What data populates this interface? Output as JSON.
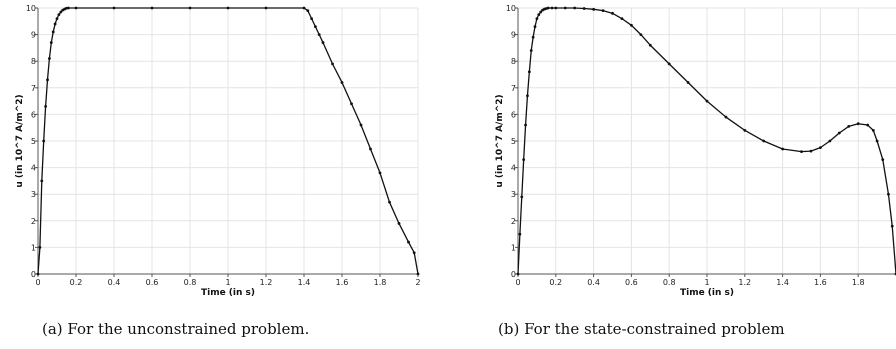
{
  "captions": {
    "a": "(a) For the unconstrained problem.",
    "b": "(b) For the state-constrained problem"
  },
  "colors": {
    "line": "#111111",
    "grid": "#e4e4e4",
    "axis": "#555555"
  },
  "chart_data": [
    {
      "type": "line",
      "title": "",
      "xlabel": "Time (in s)",
      "ylabel": "u (in 10^7 A/m^2)",
      "xlim": [
        0,
        2
      ],
      "ylim": [
        0,
        10
      ],
      "xticks": [
        "0",
        "0.2",
        "0.4",
        "0.6",
        "0.8",
        "1",
        "1.2",
        "1.4",
        "1.6",
        "1.8",
        "2"
      ],
      "yticks": [
        "0",
        "1",
        "2",
        "3",
        "4",
        "5",
        "6",
        "7",
        "8",
        "9",
        "10"
      ],
      "grid": true,
      "markers": true,
      "series": [
        {
          "x": [
            0,
            0.01,
            0.02,
            0.03,
            0.04,
            0.05,
            0.06,
            0.07,
            0.08,
            0.09,
            0.1,
            0.11,
            0.12,
            0.13,
            0.14,
            0.15,
            0.16,
            0.2,
            0.4,
            0.6,
            0.8,
            1.0,
            1.2,
            1.4,
            1.42,
            1.44,
            1.46,
            1.48,
            1.5,
            1.55,
            1.6,
            1.65,
            1.7,
            1.75,
            1.8,
            1.85,
            1.9,
            1.95,
            1.98,
            2.0
          ],
          "y": [
            0,
            1.0,
            3.5,
            5.0,
            6.3,
            7.3,
            8.1,
            8.7,
            9.1,
            9.4,
            9.6,
            9.75,
            9.85,
            9.92,
            9.96,
            9.99,
            10,
            10,
            10,
            10,
            10,
            10,
            10,
            10,
            9.9,
            9.6,
            9.3,
            9.0,
            8.7,
            7.9,
            7.2,
            6.4,
            5.6,
            4.7,
            3.8,
            2.7,
            1.9,
            1.2,
            0.8,
            0
          ]
        }
      ]
    },
    {
      "type": "line",
      "title": "",
      "xlabel": "Time (in s)",
      "ylabel": "u (in 10^7 A/m^2)",
      "xlim": [
        0,
        2
      ],
      "ylim": [
        0,
        10
      ],
      "xticks": [
        "0",
        "0.2",
        "0.4",
        "0.6",
        "0.8",
        "1",
        "1.2",
        "1.4",
        "1.6",
        "1.8"
      ],
      "yticks": [
        "0",
        "1",
        "2",
        "3",
        "4",
        "5",
        "6",
        "7",
        "8",
        "9",
        "10"
      ],
      "grid": true,
      "markers": true,
      "series": [
        {
          "x": [
            0,
            0.01,
            0.02,
            0.03,
            0.04,
            0.05,
            0.06,
            0.07,
            0.08,
            0.09,
            0.1,
            0.11,
            0.12,
            0.13,
            0.14,
            0.15,
            0.16,
            0.18,
            0.2,
            0.25,
            0.3,
            0.35,
            0.4,
            0.45,
            0.5,
            0.55,
            0.6,
            0.65,
            0.7,
            0.8,
            0.9,
            1.0,
            1.1,
            1.2,
            1.3,
            1.4,
            1.5,
            1.55,
            1.6,
            1.65,
            1.7,
            1.75,
            1.8,
            1.85,
            1.88,
            1.9,
            1.93,
            1.96,
            1.98,
            2.0
          ],
          "y": [
            0,
            1.5,
            2.9,
            4.3,
            5.6,
            6.7,
            7.6,
            8.4,
            8.9,
            9.3,
            9.6,
            9.75,
            9.85,
            9.92,
            9.96,
            9.98,
            10,
            10,
            10,
            10,
            10,
            9.98,
            9.95,
            9.9,
            9.8,
            9.6,
            9.35,
            9.0,
            8.6,
            7.9,
            7.2,
            6.5,
            5.9,
            5.4,
            5.0,
            4.7,
            4.6,
            4.62,
            4.75,
            5.0,
            5.3,
            5.55,
            5.65,
            5.6,
            5.4,
            5.0,
            4.3,
            3.0,
            1.8,
            0
          ]
        }
      ]
    }
  ]
}
